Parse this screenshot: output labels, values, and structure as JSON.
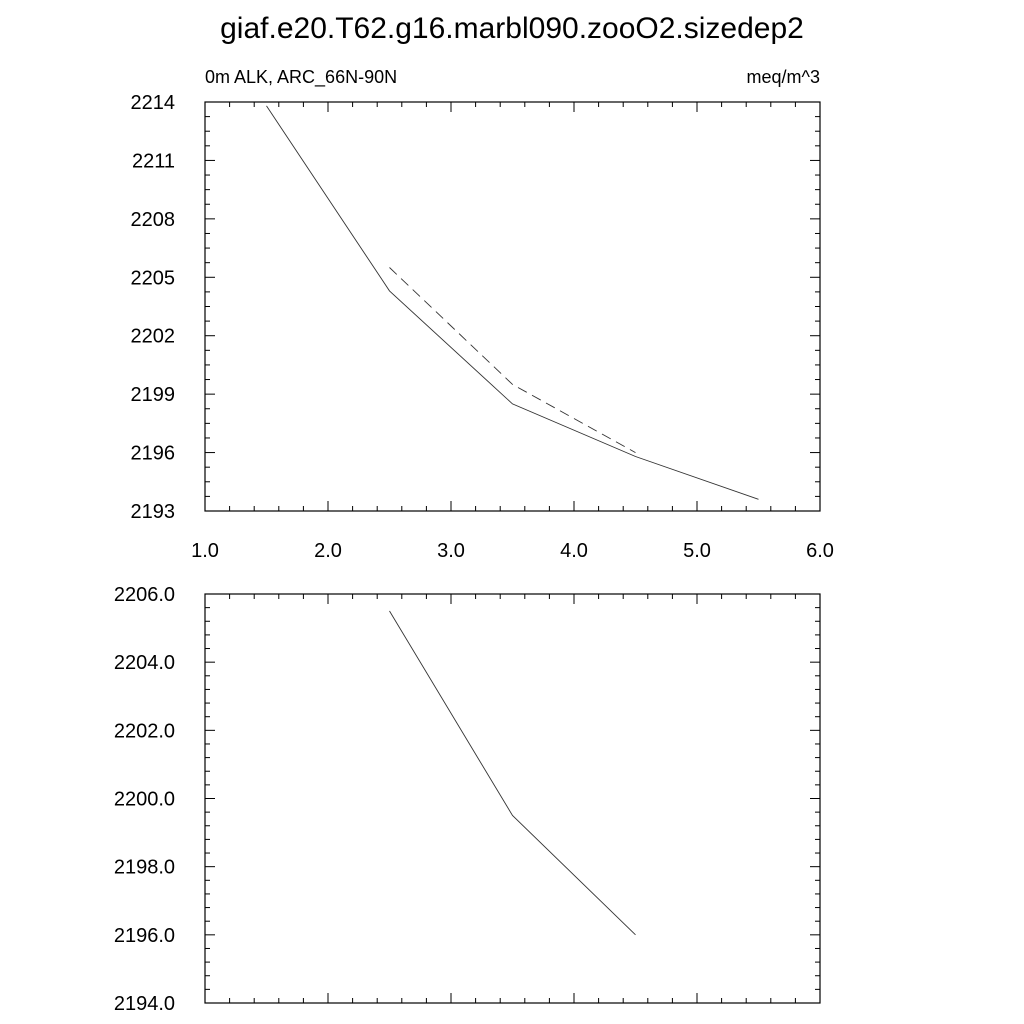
{
  "figure": {
    "title": "giaf.e20.T62.g16.marbl090.zooO2.sizedep2"
  },
  "chart_data": [
    {
      "type": "line",
      "left_label": "0m ALK, ARC_66N-90N",
      "right_label": "meq/m^3",
      "xlim": [
        1.0,
        6.0
      ],
      "ylim": [
        2193,
        2214
      ],
      "x_ticks": [
        "1.0",
        "2.0",
        "3.0",
        "4.0",
        "5.0",
        "6.0"
      ],
      "y_ticks": [
        "2193",
        "2196",
        "2199",
        "2202",
        "2205",
        "2208",
        "2211",
        "2214"
      ],
      "series": [
        {
          "style": "solid",
          "x": [
            1.5,
            2.5,
            3.5,
            4.5,
            5.5
          ],
          "y": [
            2213.8,
            2204.3,
            2198.5,
            2195.8,
            2193.6
          ]
        },
        {
          "style": "dashed",
          "x": [
            2.5,
            3.5,
            4.5
          ],
          "y": [
            2205.5,
            2199.5,
            2196.0
          ]
        }
      ]
    },
    {
      "type": "line",
      "xlim": [
        1.0,
        6.0
      ],
      "ylim": [
        2194.0,
        2206.0
      ],
      "x_ticks": [],
      "y_ticks": [
        "2194.0",
        "2196.0",
        "2198.0",
        "2200.0",
        "2202.0",
        "2204.0",
        "2206.0"
      ],
      "series": [
        {
          "style": "solid",
          "x": [
            2.5,
            3.5,
            4.5
          ],
          "y": [
            2205.5,
            2199.5,
            2196.0
          ]
        }
      ]
    }
  ]
}
